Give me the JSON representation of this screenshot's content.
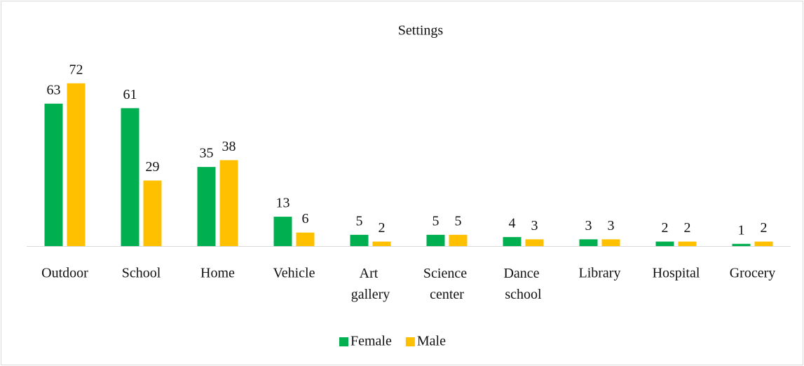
{
  "chart_data": {
    "type": "bar",
    "title": "Settings",
    "categories": [
      "Outdoor",
      "School",
      "Home",
      "Vehicle",
      "Art gallery",
      "Science center",
      "Dance school",
      "Library",
      "Hospital",
      "Grocery"
    ],
    "series": [
      {
        "name": "Female",
        "color": "#00b050",
        "values": [
          63,
          61,
          35,
          13,
          5,
          5,
          4,
          3,
          2,
          1
        ]
      },
      {
        "name": "Male",
        "color": "#ffc000",
        "values": [
          72,
          29,
          38,
          6,
          2,
          5,
          3,
          3,
          2,
          2
        ]
      }
    ],
    "ylim": [
      0,
      80
    ],
    "legend": "bottom"
  }
}
